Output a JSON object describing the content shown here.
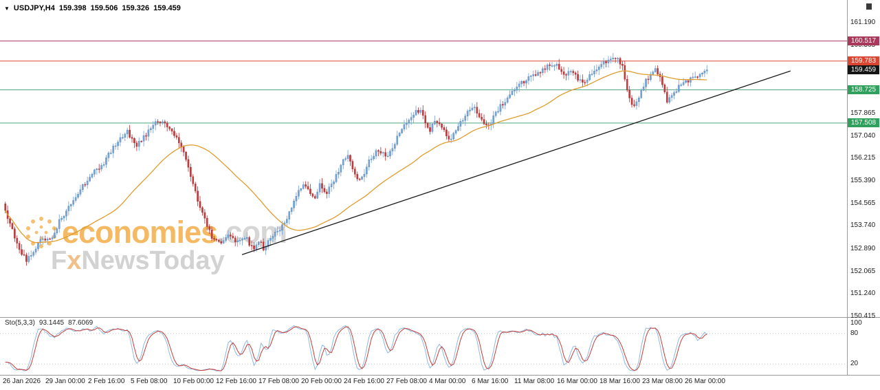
{
  "header": {
    "symbol": "USDJPY,H4",
    "open": "159.398",
    "high": "159.506",
    "low": "159.326",
    "close": "159.459"
  },
  "watermark": {
    "brand": "economies",
    "suffix": ".com",
    "tagline_f": "F",
    "tagline_x": "x",
    "tagline_rest": "NewsToday"
  },
  "price_axis_ticks": [
    161.19,
    160.365,
    157.865,
    157.04,
    156.215,
    155.39,
    154.565,
    153.74,
    152.89,
    152.065,
    151.24,
    150.415
  ],
  "levels": [
    {
      "value": 160.517,
      "label": "160.517",
      "line_color": "#a8395b",
      "tag_color": "#a8395b"
    },
    {
      "value": 159.783,
      "label": "159.783",
      "line_color": "#da4631",
      "tag_color": "#da4631"
    },
    {
      "value": 158.725,
      "label": "158.725",
      "line_color": "#4ba47e",
      "tag_color": "#2fa15d"
    },
    {
      "value": 157.508,
      "label": "157.508",
      "line_color": "#4ba47e",
      "tag_color": "#2fa15d"
    }
  ],
  "current_price": {
    "value": 159.459,
    "label": "159.459",
    "tag_color": "#141414"
  },
  "x_axis_labels": [
    "26 Jan 2026",
    "29 Jan 00:00",
    "2 Feb 16:00",
    "5 Feb 08:00",
    "10 Feb 00:00",
    "12 Feb 16:00",
    "17 Feb 08:00",
    "20 Feb 00:00",
    "24 Feb 16:00",
    "27 Feb 08:00",
    "4 Mar 00:00",
    "6 Mar 16:00",
    "11 Mar 08:00",
    "16 Mar 00:00",
    "18 Mar 16:00",
    "23 Mar 08:00",
    "26 Mar 00:00"
  ],
  "sto": {
    "title": "Sto(5,3,3)",
    "value_k": "93.1445",
    "value_d": "87.6069",
    "axis_labels": [
      {
        "v": 100,
        "label": "100"
      },
      {
        "v": 80,
        "label": "80"
      },
      {
        "v": 20,
        "label": "20"
      }
    ],
    "dashed_levels": [
      80,
      20
    ],
    "k_color": "#8fb8dd",
    "d_color": "#c23b38"
  },
  "colors": {
    "up": "#7aa6d8",
    "up_stroke": "#4f81b8",
    "down": "#c43b3d",
    "down_stroke": "#a82b2e",
    "ma": "#e09c2e",
    "trend": "#1a1a1a",
    "separator": "#9a9a9a",
    "bg": "#ffffff"
  },
  "chart_data": {
    "type": "candlestick",
    "symbol": "USDJPY",
    "timeframe": "H4",
    "title": "USDJPY,H4 159.398 159.506 159.326 159.459",
    "ylim": [
      150.415,
      161.19
    ],
    "x_range": [
      "26 Jan 2026",
      "26 Mar 00:00"
    ],
    "current": {
      "open": 159.398,
      "high": 159.506,
      "low": 159.326,
      "close": 159.459
    },
    "horizontal_levels": [
      160.517,
      159.783,
      158.725,
      157.508
    ],
    "trendline": {
      "from": {
        "x_frac": 0.2857,
        "price": 152.68
      },
      "to": {
        "x_frac": 0.9334,
        "price": 159.42
      }
    },
    "moving_average": {
      "period": 45,
      "color": "#e09c2e"
    },
    "approx_bar_count": 300,
    "price_path": [
      [
        0,
        154.55
      ],
      [
        0.01,
        153.8
      ],
      [
        0.022,
        152.9
      ],
      [
        0.034,
        152.45
      ],
      [
        0.045,
        152.9
      ],
      [
        0.056,
        153.3
      ],
      [
        0.068,
        153.2
      ],
      [
        0.08,
        153.9
      ],
      [
        0.095,
        154.5
      ],
      [
        0.113,
        155.2
      ],
      [
        0.128,
        155.7
      ],
      [
        0.142,
        156.0
      ],
      [
        0.156,
        156.6
      ],
      [
        0.17,
        157.0
      ],
      [
        0.176,
        157.2
      ],
      [
        0.19,
        156.7
      ],
      [
        0.204,
        157.1
      ],
      [
        0.217,
        157.5
      ],
      [
        0.227,
        157.6
      ],
      [
        0.235,
        157.3
      ],
      [
        0.245,
        157.0
      ],
      [
        0.259,
        156.3
      ],
      [
        0.274,
        154.9
      ],
      [
        0.288,
        153.9
      ],
      [
        0.298,
        153.2
      ],
      [
        0.308,
        153.1
      ],
      [
        0.32,
        153.4
      ],
      [
        0.332,
        153.1
      ],
      [
        0.345,
        153.3
      ],
      [
        0.355,
        152.9
      ],
      [
        0.365,
        153.2
      ],
      [
        0.37,
        152.8
      ],
      [
        0.38,
        153.3
      ],
      [
        0.39,
        153.5
      ],
      [
        0.402,
        153.9
      ],
      [
        0.412,
        154.6
      ],
      [
        0.42,
        155.0
      ],
      [
        0.428,
        155.3
      ],
      [
        0.435,
        155.0
      ],
      [
        0.443,
        154.8
      ],
      [
        0.45,
        155.25
      ],
      [
        0.458,
        154.9
      ],
      [
        0.466,
        155.2
      ],
      [
        0.474,
        155.6
      ],
      [
        0.483,
        156.2
      ],
      [
        0.49,
        156.3
      ],
      [
        0.5,
        155.6
      ],
      [
        0.508,
        155.35
      ],
      [
        0.52,
        156.1
      ],
      [
        0.532,
        156.5
      ],
      [
        0.545,
        156.3
      ],
      [
        0.557,
        156.8
      ],
      [
        0.57,
        157.5
      ],
      [
        0.585,
        157.9
      ],
      [
        0.595,
        157.95
      ],
      [
        0.605,
        157.2
      ],
      [
        0.615,
        157.6
      ],
      [
        0.625,
        157.3
      ],
      [
        0.635,
        156.85
      ],
      [
        0.645,
        157.3
      ],
      [
        0.658,
        157.9
      ],
      [
        0.668,
        158.15
      ],
      [
        0.68,
        157.6
      ],
      [
        0.69,
        157.35
      ],
      [
        0.7,
        157.9
      ],
      [
        0.712,
        158.3
      ],
      [
        0.724,
        158.7
      ],
      [
        0.736,
        159.0
      ],
      [
        0.748,
        159.15
      ],
      [
        0.76,
        159.35
      ],
      [
        0.772,
        159.55
      ],
      [
        0.783,
        159.7
      ],
      [
        0.792,
        159.5
      ],
      [
        0.8,
        159.25
      ],
      [
        0.808,
        159.5
      ],
      [
        0.815,
        159.2
      ],
      [
        0.824,
        158.95
      ],
      [
        0.832,
        159.2
      ],
      [
        0.84,
        159.45
      ],
      [
        0.852,
        159.7
      ],
      [
        0.862,
        159.85
      ],
      [
        0.872,
        159.9
      ],
      [
        0.88,
        159.55
      ],
      [
        0.888,
        158.6
      ],
      [
        0.896,
        158.05
      ],
      [
        0.904,
        158.55
      ],
      [
        0.912,
        159.0
      ],
      [
        0.92,
        159.3
      ],
      [
        0.928,
        159.5
      ],
      [
        0.936,
        159.0
      ],
      [
        0.944,
        158.25
      ],
      [
        0.952,
        158.6
      ],
      [
        0.96,
        158.85
      ],
      [
        0.968,
        159.0
      ],
      [
        0.976,
        159.1
      ],
      [
        0.984,
        159.2
      ],
      [
        0.992,
        159.35
      ],
      [
        1,
        159.459
      ]
    ],
    "indicator": {
      "name": "Stochastic",
      "params": "(5,3,3)",
      "current_values": [
        93.1445,
        87.6069
      ],
      "range": [
        0,
        100
      ],
      "marked_levels": [
        100,
        80,
        20
      ]
    }
  }
}
